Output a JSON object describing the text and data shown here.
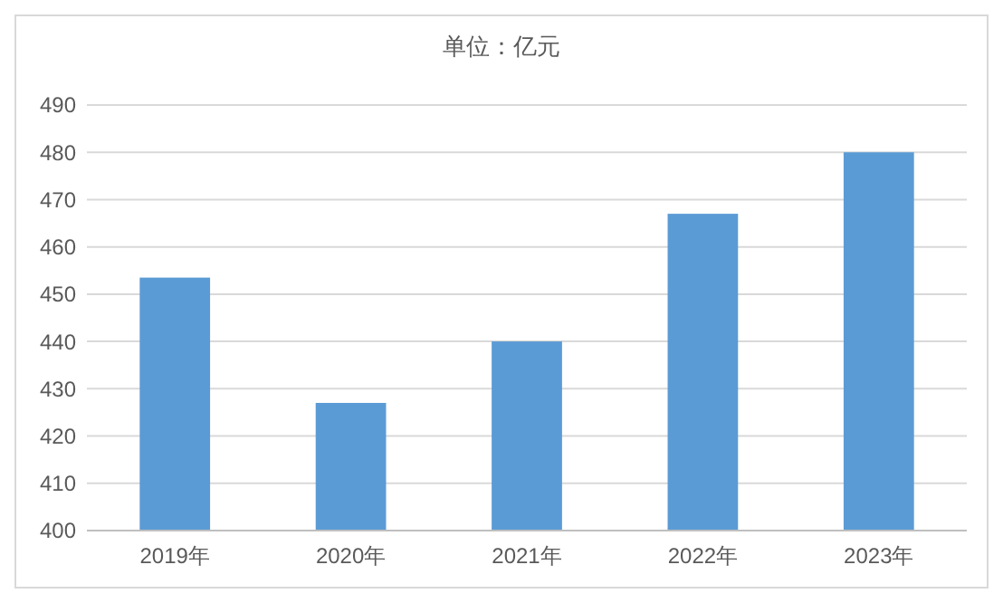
{
  "chart_data": {
    "type": "bar",
    "title": "单位：亿元",
    "categories": [
      "2019年",
      "2020年",
      "2021年",
      "2022年",
      "2023年"
    ],
    "values": [
      453.5,
      427,
      440,
      467,
      480
    ],
    "color": "#5b9bd5",
    "ylim": [
      400,
      490
    ],
    "yticks": [
      400,
      410,
      420,
      430,
      440,
      450,
      460,
      470,
      480,
      490
    ],
    "grid": "y"
  }
}
